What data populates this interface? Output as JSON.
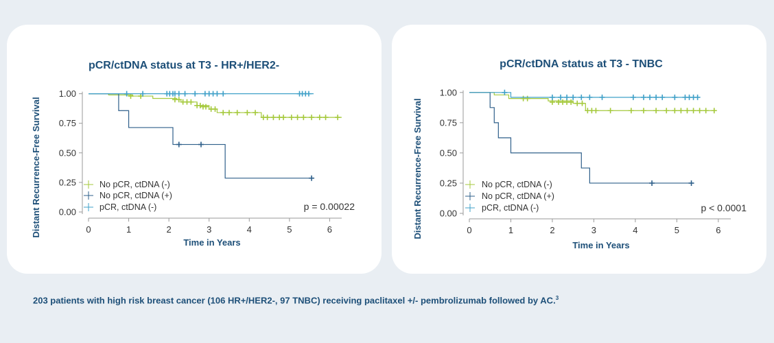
{
  "chart_data": [
    {
      "type": "line",
      "subtype": "kaplan-meier",
      "title": "pCR/ctDNA status at T3 - HR+/HER2-",
      "xlabel": "Time in Years",
      "ylabel": "Distant Recurrence-Free Survival",
      "xlim": [
        0,
        6.3
      ],
      "ylim": [
        0,
        1.05
      ],
      "x_ticks": [
        0,
        1,
        2,
        3,
        4,
        5,
        6
      ],
      "y_ticks": [
        0,
        0.25,
        0.5,
        0.75,
        1.0
      ],
      "y_tick_labels": [
        "0.00",
        "0.25",
        "0.50",
        "0.75",
        "1.00"
      ],
      "grid": false,
      "legend_position": "bottom-left",
      "annotation": "p = 0.00022",
      "series": [
        {
          "name": "No pCR, ctDNA (-)",
          "color": "#a5c93c",
          "steps": [
            [
              0,
              1.0
            ],
            [
              0.5,
              0.99
            ],
            [
              1.1,
              0.98
            ],
            [
              1.6,
              0.96
            ],
            [
              2.2,
              0.95
            ],
            [
              2.3,
              0.93
            ],
            [
              2.7,
              0.9
            ],
            [
              3.0,
              0.87
            ],
            [
              3.2,
              0.84
            ],
            [
              4.3,
              0.8
            ],
            [
              6.3,
              0.8
            ]
          ],
          "censored": [
            [
              1.05,
              0.98
            ],
            [
              1.3,
              0.98
            ],
            [
              2.15,
              0.95
            ],
            [
              2.25,
              0.95
            ],
            [
              2.35,
              0.93
            ],
            [
              2.45,
              0.93
            ],
            [
              2.55,
              0.93
            ],
            [
              2.7,
              0.9
            ],
            [
              2.78,
              0.9
            ],
            [
              2.85,
              0.89
            ],
            [
              2.92,
              0.89
            ],
            [
              3.05,
              0.87
            ],
            [
              3.15,
              0.87
            ],
            [
              3.35,
              0.84
            ],
            [
              3.5,
              0.84
            ],
            [
              3.7,
              0.84
            ],
            [
              3.95,
              0.84
            ],
            [
              4.15,
              0.84
            ],
            [
              4.35,
              0.8
            ],
            [
              4.45,
              0.8
            ],
            [
              4.6,
              0.8
            ],
            [
              4.75,
              0.8
            ],
            [
              4.85,
              0.8
            ],
            [
              5.05,
              0.8
            ],
            [
              5.2,
              0.8
            ],
            [
              5.35,
              0.8
            ],
            [
              5.55,
              0.8
            ],
            [
              5.75,
              0.8
            ],
            [
              5.9,
              0.8
            ],
            [
              6.2,
              0.8
            ]
          ]
        },
        {
          "name": "No pCR, ctDNA (+)",
          "color": "#2e5f8a",
          "steps": [
            [
              0,
              1.0
            ],
            [
              0.75,
              0.857
            ],
            [
              1.0,
              0.714
            ],
            [
              2.1,
              0.571
            ],
            [
              3.4,
              0.286
            ],
            [
              5.6,
              0.286
            ]
          ],
          "censored": [
            [
              2.25,
              0.571
            ],
            [
              2.8,
              0.571
            ],
            [
              5.55,
              0.286
            ]
          ]
        },
        {
          "name": "pCR, ctDNA (-)",
          "color": "#3fa0c8",
          "steps": [
            [
              0,
              1.0
            ],
            [
              5.6,
              1.0
            ]
          ],
          "censored": [
            [
              0.95,
              1.0
            ],
            [
              1.35,
              1.0
            ],
            [
              1.95,
              1.0
            ],
            [
              2.02,
              1.0
            ],
            [
              2.1,
              1.0
            ],
            [
              2.15,
              1.0
            ],
            [
              2.25,
              1.0
            ],
            [
              2.4,
              1.0
            ],
            [
              2.65,
              1.0
            ],
            [
              2.9,
              1.0
            ],
            [
              3.0,
              1.0
            ],
            [
              3.1,
              1.0
            ],
            [
              3.2,
              1.0
            ],
            [
              3.35,
              1.0
            ],
            [
              5.25,
              1.0
            ],
            [
              5.32,
              1.0
            ],
            [
              5.4,
              1.0
            ],
            [
              5.48,
              1.0
            ]
          ]
        }
      ]
    },
    {
      "type": "line",
      "subtype": "kaplan-meier",
      "title": "pCR/ctDNA status at T3 - TNBC",
      "xlabel": "Time in Years",
      "ylabel": "Distant Recurrence-Free Survival",
      "xlim": [
        0,
        6.3
      ],
      "ylim": [
        0,
        1.05
      ],
      "x_ticks": [
        0,
        1,
        2,
        3,
        4,
        5,
        6
      ],
      "y_ticks": [
        0,
        0.25,
        0.5,
        0.75,
        1.0
      ],
      "y_tick_labels": [
        "0.00",
        "0.25",
        "0.50",
        "0.75",
        "1.00"
      ],
      "grid": false,
      "legend_position": "bottom-left",
      "annotation": "p < 0.0001",
      "series": [
        {
          "name": "No pCR, ctDNA (-)",
          "color": "#a5c93c",
          "steps": [
            [
              0,
              1.0
            ],
            [
              0.6,
              0.98
            ],
            [
              0.95,
              0.95
            ],
            [
              1.9,
              0.93
            ],
            [
              2.5,
              0.91
            ],
            [
              2.8,
              0.85
            ],
            [
              5.95,
              0.85
            ]
          ],
          "censored": [
            [
              1.3,
              0.95
            ],
            [
              1.4,
              0.95
            ],
            [
              2.0,
              0.92
            ],
            [
              2.15,
              0.92
            ],
            [
              2.25,
              0.92
            ],
            [
              2.35,
              0.92
            ],
            [
              2.45,
              0.92
            ],
            [
              2.6,
              0.91
            ],
            [
              2.72,
              0.91
            ],
            [
              2.85,
              0.85
            ],
            [
              2.95,
              0.85
            ],
            [
              3.05,
              0.85
            ],
            [
              3.4,
              0.85
            ],
            [
              3.9,
              0.85
            ],
            [
              4.2,
              0.85
            ],
            [
              4.5,
              0.85
            ],
            [
              4.75,
              0.85
            ],
            [
              4.95,
              0.85
            ],
            [
              5.1,
              0.85
            ],
            [
              5.25,
              0.85
            ],
            [
              5.4,
              0.85
            ],
            [
              5.55,
              0.85
            ],
            [
              5.7,
              0.85
            ],
            [
              5.9,
              0.85
            ]
          ]
        },
        {
          "name": "No pCR, ctDNA (+)",
          "color": "#2e5f8a",
          "steps": [
            [
              0,
              1.0
            ],
            [
              0.5,
              0.875
            ],
            [
              0.6,
              0.75
            ],
            [
              0.7,
              0.625
            ],
            [
              1.0,
              0.5
            ],
            [
              2.7,
              0.375
            ],
            [
              2.9,
              0.25
            ],
            [
              5.35,
              0.25
            ]
          ],
          "censored": [
            [
              4.4,
              0.25
            ],
            [
              5.35,
              0.25
            ]
          ]
        },
        {
          "name": "pCR, ctDNA (-)",
          "color": "#3fa0c8",
          "steps": [
            [
              0,
              1.0
            ],
            [
              0.9,
              1.0
            ],
            [
              1.0,
              0.96
            ],
            [
              5.5,
              0.96
            ]
          ],
          "censored": [
            [
              0.85,
              1.0
            ],
            [
              2.0,
              0.96
            ],
            [
              2.2,
              0.96
            ],
            [
              2.35,
              0.96
            ],
            [
              2.5,
              0.96
            ],
            [
              2.7,
              0.96
            ],
            [
              2.9,
              0.96
            ],
            [
              3.2,
              0.96
            ],
            [
              3.95,
              0.96
            ],
            [
              4.2,
              0.96
            ],
            [
              4.35,
              0.96
            ],
            [
              4.5,
              0.96
            ],
            [
              4.65,
              0.96
            ],
            [
              4.95,
              0.96
            ],
            [
              5.2,
              0.96
            ],
            [
              5.3,
              0.96
            ],
            [
              5.4,
              0.96
            ],
            [
              5.5,
              0.96
            ]
          ]
        }
      ]
    }
  ],
  "caption": {
    "text": "203 patients with high risk breast cancer (106 HR+/HER2-, 97 TNBC) receiving paclitaxel +/- pembrolizumab followed by AC.",
    "ref": "3"
  }
}
